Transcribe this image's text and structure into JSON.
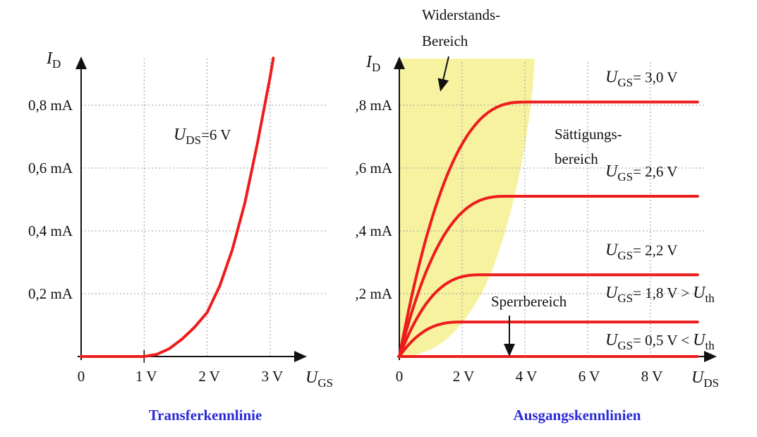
{
  "colors": {
    "curve": "#ee1c1c",
    "grid": "#9a9a9a",
    "axis": "#111111",
    "region_fill": "#f7f2a0",
    "caption": "#2a2ad6"
  },
  "left": {
    "caption": "Transferkennlinie",
    "y_axis": {
      "letter": "I",
      "sub": "D"
    },
    "x_axis": {
      "letter": "U",
      "sub": "GS"
    },
    "annotation": {
      "letter": "U",
      "sub": "DS",
      "rest": "=6 V"
    }
  },
  "right": {
    "caption": "Ausgangskennlinien",
    "y_axis": {
      "letter": "I",
      "sub": "D"
    },
    "x_axis": {
      "letter": "U",
      "sub": "DS"
    },
    "region_ohmic_line1": "Widerstands-",
    "region_ohmic_line2": "Bereich",
    "region_saturation_line1": "Sättigungs-",
    "region_saturation_line2": "bereich",
    "region_cutoff": "Sperrbereich",
    "curve_labels": [
      {
        "letter": "U",
        "sub": "GS",
        "text": "= 3,0 V",
        "extra_letter": "",
        "extra_sub": ""
      },
      {
        "letter": "U",
        "sub": "GS",
        "text": "= 2,6 V",
        "extra_letter": "",
        "extra_sub": ""
      },
      {
        "letter": "U",
        "sub": "GS",
        "text": "= 2,2 V",
        "extra_letter": "",
        "extra_sub": ""
      },
      {
        "letter": "U",
        "sub": "GS",
        "text": "= 1,8 V >",
        "extra_letter": "U",
        "extra_sub": "th"
      },
      {
        "letter": "U",
        "sub": "GS",
        "text": "= 0,5 V <",
        "extra_letter": "U",
        "extra_sub": "th"
      }
    ]
  },
  "chart_data": [
    {
      "type": "line",
      "title": "Transferkennlinie",
      "xlabel": "UGS",
      "ylabel": "ID",
      "x_unit": "V",
      "y_unit": "mA",
      "xlim": [
        0,
        3.5
      ],
      "ylim": [
        0,
        0.95
      ],
      "x_ticks": [
        0,
        1,
        2,
        3
      ],
      "x_tick_labels": [
        "0",
        "1 V",
        "2 V",
        "3 V"
      ],
      "y_ticks": [
        0.2,
        0.4,
        0.6,
        0.8
      ],
      "y_tick_labels": [
        "0,2 mA",
        "0,4 mA",
        "0,6 mA",
        "0,8 mA"
      ],
      "grid": true,
      "series": [
        {
          "name": "UDS=6 V",
          "x": [
            0,
            0.5,
            1.0,
            1.2,
            1.4,
            1.6,
            1.8,
            2.0,
            2.2,
            2.4,
            2.6,
            2.8,
            3.0,
            3.05
          ],
          "y": [
            0,
            0,
            0,
            0.007,
            0.025,
            0.055,
            0.093,
            0.14,
            0.225,
            0.34,
            0.49,
            0.68,
            0.89,
            0.95
          ]
        }
      ]
    },
    {
      "type": "line",
      "title": "Ausgangskennlinien",
      "xlabel": "UDS",
      "ylabel": "ID",
      "x_unit": "V",
      "y_unit": "mA",
      "xlim": [
        0,
        9.5
      ],
      "ylim": [
        0,
        0.95
      ],
      "x_ticks": [
        0,
        2,
        4,
        6,
        8
      ],
      "x_tick_labels": [
        "0",
        "2 V",
        "4 V",
        "6 V",
        "8 V"
      ],
      "y_ticks": [
        0.2,
        0.4,
        0.6,
        0.8
      ],
      "y_tick_labels": [
        ",2 mA",
        ",4 mA",
        ",6 mA",
        ",8 mA"
      ],
      "grid": true,
      "series": [
        {
          "name": "UGS= 3,0 V",
          "saturation": 0.81,
          "knee": 4.0
        },
        {
          "name": "UGS= 2,6 V",
          "saturation": 0.51,
          "knee": 3.4
        },
        {
          "name": "UGS= 2,2 V",
          "saturation": 0.26,
          "knee": 2.6
        },
        {
          "name": "UGS= 1,8 V > Uth",
          "saturation": 0.11,
          "knee": 2.0
        },
        {
          "name": "UGS= 0,5 V < Uth",
          "saturation": 0.0,
          "knee": 1.0
        }
      ]
    }
  ]
}
